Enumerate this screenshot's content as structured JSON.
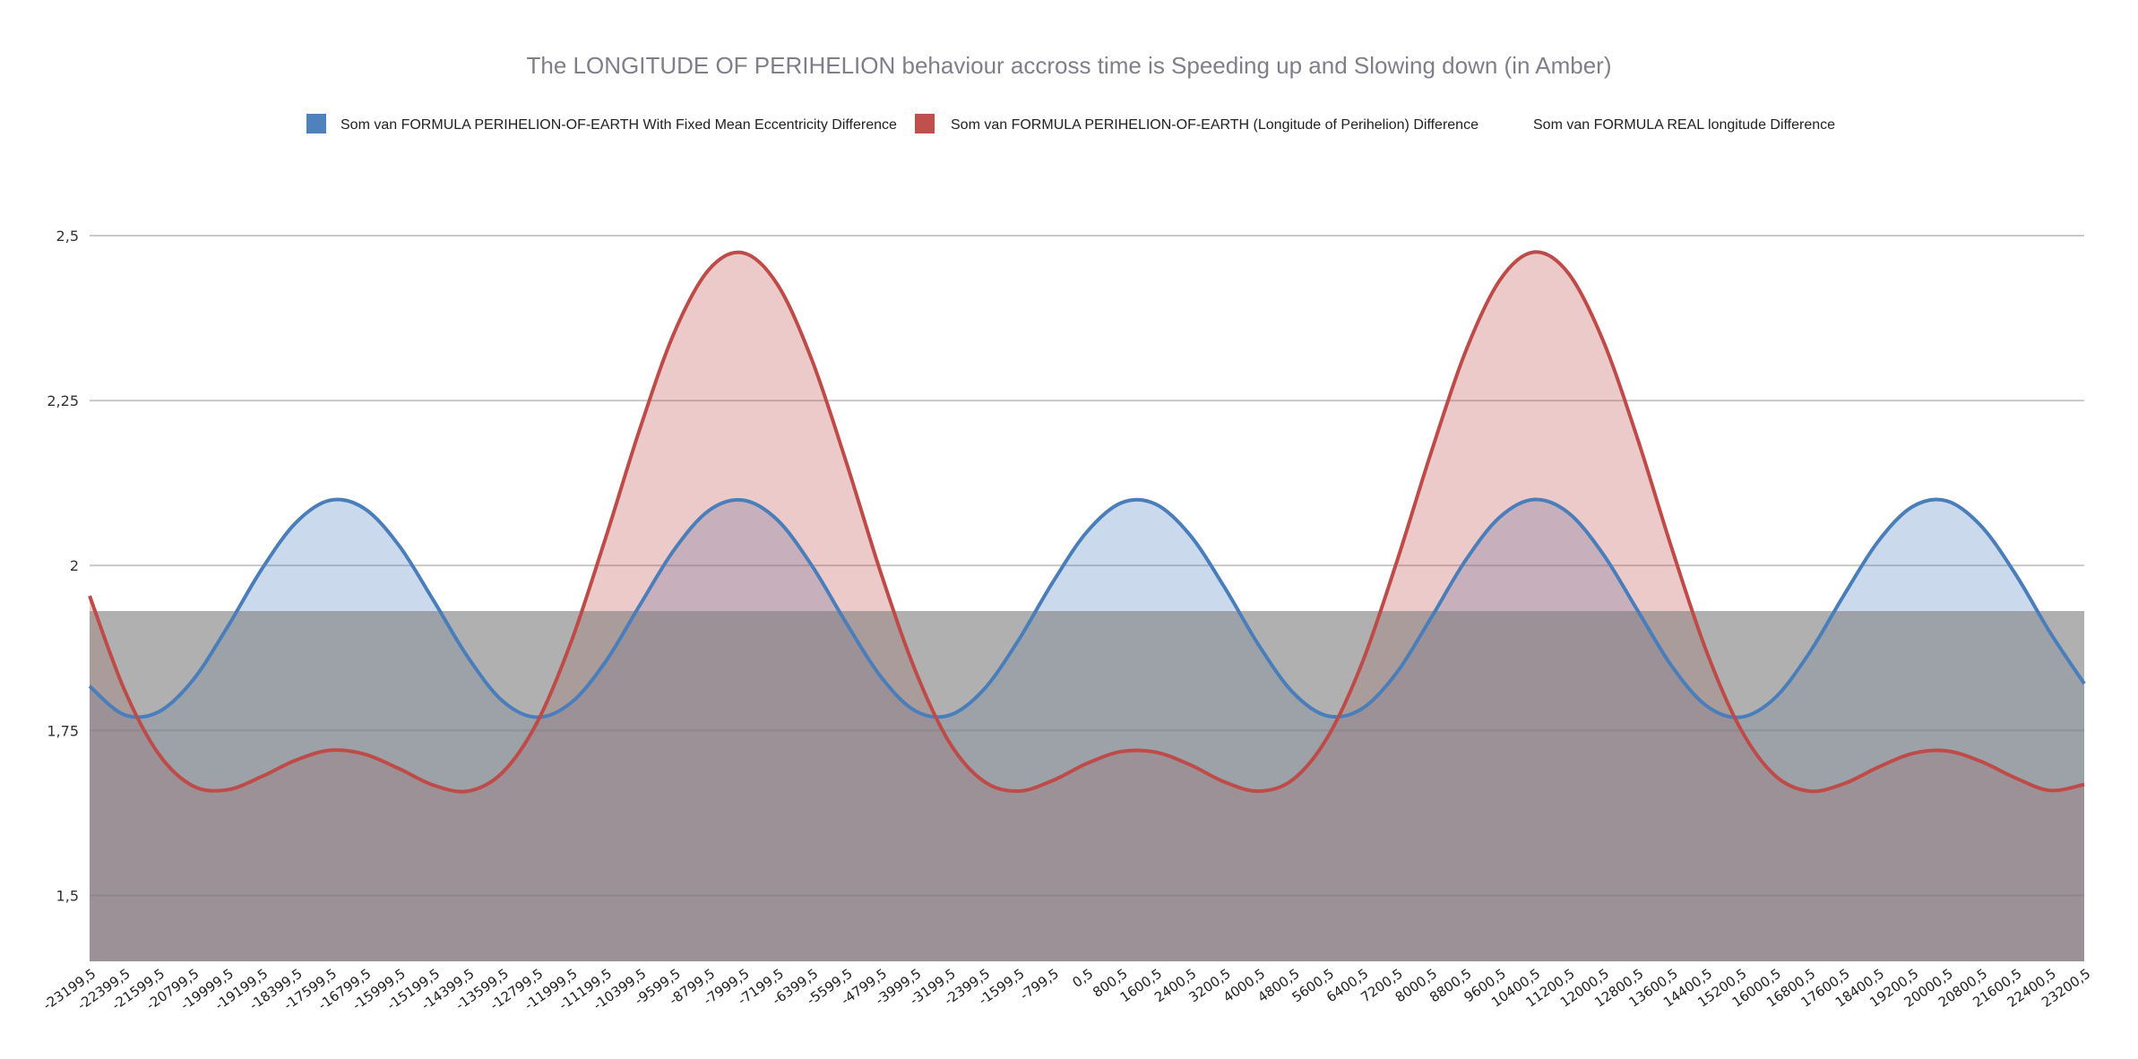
{
  "chart_data": {
    "type": "area",
    "title": "The LONGITUDE OF PERIHELION behaviour accross time is Speeding up and Slowing down (in Amber)",
    "xlabel": "",
    "ylabel": "",
    "ylim": [
      1.4,
      2.5
    ],
    "yticks": [
      1.5,
      1.75,
      2,
      2.25,
      2.5
    ],
    "ytick_labels": [
      "1,5",
      "1,75",
      "2",
      "2,25",
      "2,5"
    ],
    "grid": true,
    "legend": "top",
    "categories": [
      "-23199,5",
      "-22399,5",
      "-21599,5",
      "-20799,5",
      "-19999,5",
      "-19199,5",
      "-18399,5",
      "-17599,5",
      "-16799,5",
      "-15999,5",
      "-15199,5",
      "-14399,5",
      "-13599,5",
      "-12799,5",
      "-11999,5",
      "-11199,5",
      "-10399,5",
      "-9599,5",
      "-8799,5",
      "-7999,5",
      "-7199,5",
      "-6399,5",
      "-5599,5",
      "-4799,5",
      "-3999,5",
      "-3199,5",
      "-2399,5",
      "-1599,5",
      "-799,5",
      "0,5",
      "800,5",
      "1600,5",
      "2400,5",
      "3200,5",
      "4000,5",
      "4800,5",
      "5600,5",
      "6400,5",
      "7200,5",
      "8000,5",
      "8800,5",
      "9600,5",
      "10400,5",
      "11200,5",
      "12000,5",
      "12800,5",
      "13600,5",
      "14400,5",
      "15200,5",
      "16000,5",
      "16800,5",
      "17600,5",
      "18400,5",
      "19200,5",
      "20000,5",
      "20800,5",
      "21600,5",
      "22400,5",
      "23200,5"
    ],
    "series": [
      {
        "name": "Som van FORMULA PERIHELION-OF-EARTH With Fixed Mean Eccentricity Difference",
        "color": "#4a7ebb",
        "values": [
          1.817,
          1.774,
          1.778,
          1.826,
          1.906,
          1.994,
          2.065,
          2.099,
          2.086,
          2.03,
          1.947,
          1.861,
          1.795,
          1.77,
          1.792,
          1.854,
          1.94,
          2.024,
          2.083,
          2.099,
          2.069,
          2.0,
          1.913,
          1.832,
          1.78,
          1.773,
          1.812,
          1.886,
          1.974,
          2.051,
          2.095,
          2.093,
          2.046,
          1.967,
          1.879,
          1.807,
          1.772,
          1.783,
          1.837,
          1.92,
          2.007,
          2.073,
          2.1,
          2.08,
          2.018,
          1.933,
          1.848,
          1.788,
          1.77,
          1.799,
          1.867,
          1.954,
          2.036,
          2.089,
          2.098,
          2.06,
          1.987,
          1.899,
          1.821
        ]
      },
      {
        "name": "Som van FORMULA PERIHELION-OF-EARTH (Longitude of Perihelion) Difference",
        "color": "#be4b48",
        "values": [
          1.954,
          1.813,
          1.715,
          1.666,
          1.66,
          1.68,
          1.705,
          1.72,
          1.714,
          1.692,
          1.667,
          1.658,
          1.686,
          1.761,
          1.884,
          2.041,
          2.207,
          2.353,
          2.448,
          2.474,
          2.426,
          2.312,
          2.157,
          1.99,
          1.842,
          1.732,
          1.673,
          1.658,
          1.674,
          1.7,
          1.718,
          1.717,
          1.698,
          1.672,
          1.658,
          1.676,
          1.74,
          1.852,
          2.004,
          2.17,
          2.323,
          2.432,
          2.475,
          2.443,
          2.342,
          2.194,
          2.027,
          1.872,
          1.753,
          1.682,
          1.658,
          1.669,
          1.694,
          1.715,
          1.719,
          1.703,
          1.678,
          1.659,
          1.668
        ]
      },
      {
        "name": "Som van FORMULA REAL longitude Difference",
        "color": "#808080",
        "values": [
          1.931,
          1.931,
          1.931,
          1.931,
          1.931,
          1.931,
          1.931,
          1.931,
          1.931,
          1.931,
          1.931,
          1.931,
          1.931,
          1.931,
          1.931,
          1.931,
          1.931,
          1.931,
          1.931,
          1.931,
          1.931,
          1.931,
          1.931,
          1.931,
          1.931,
          1.931,
          1.931,
          1.931,
          1.931,
          1.931,
          1.931,
          1.931,
          1.931,
          1.931,
          1.931,
          1.931,
          1.931,
          1.931,
          1.931,
          1.931,
          1.931,
          1.931,
          1.931,
          1.931,
          1.931,
          1.931,
          1.931,
          1.931,
          1.931,
          1.931,
          1.931,
          1.931,
          1.931,
          1.931,
          1.931,
          1.931,
          1.931,
          1.931,
          1.931
        ]
      }
    ]
  }
}
